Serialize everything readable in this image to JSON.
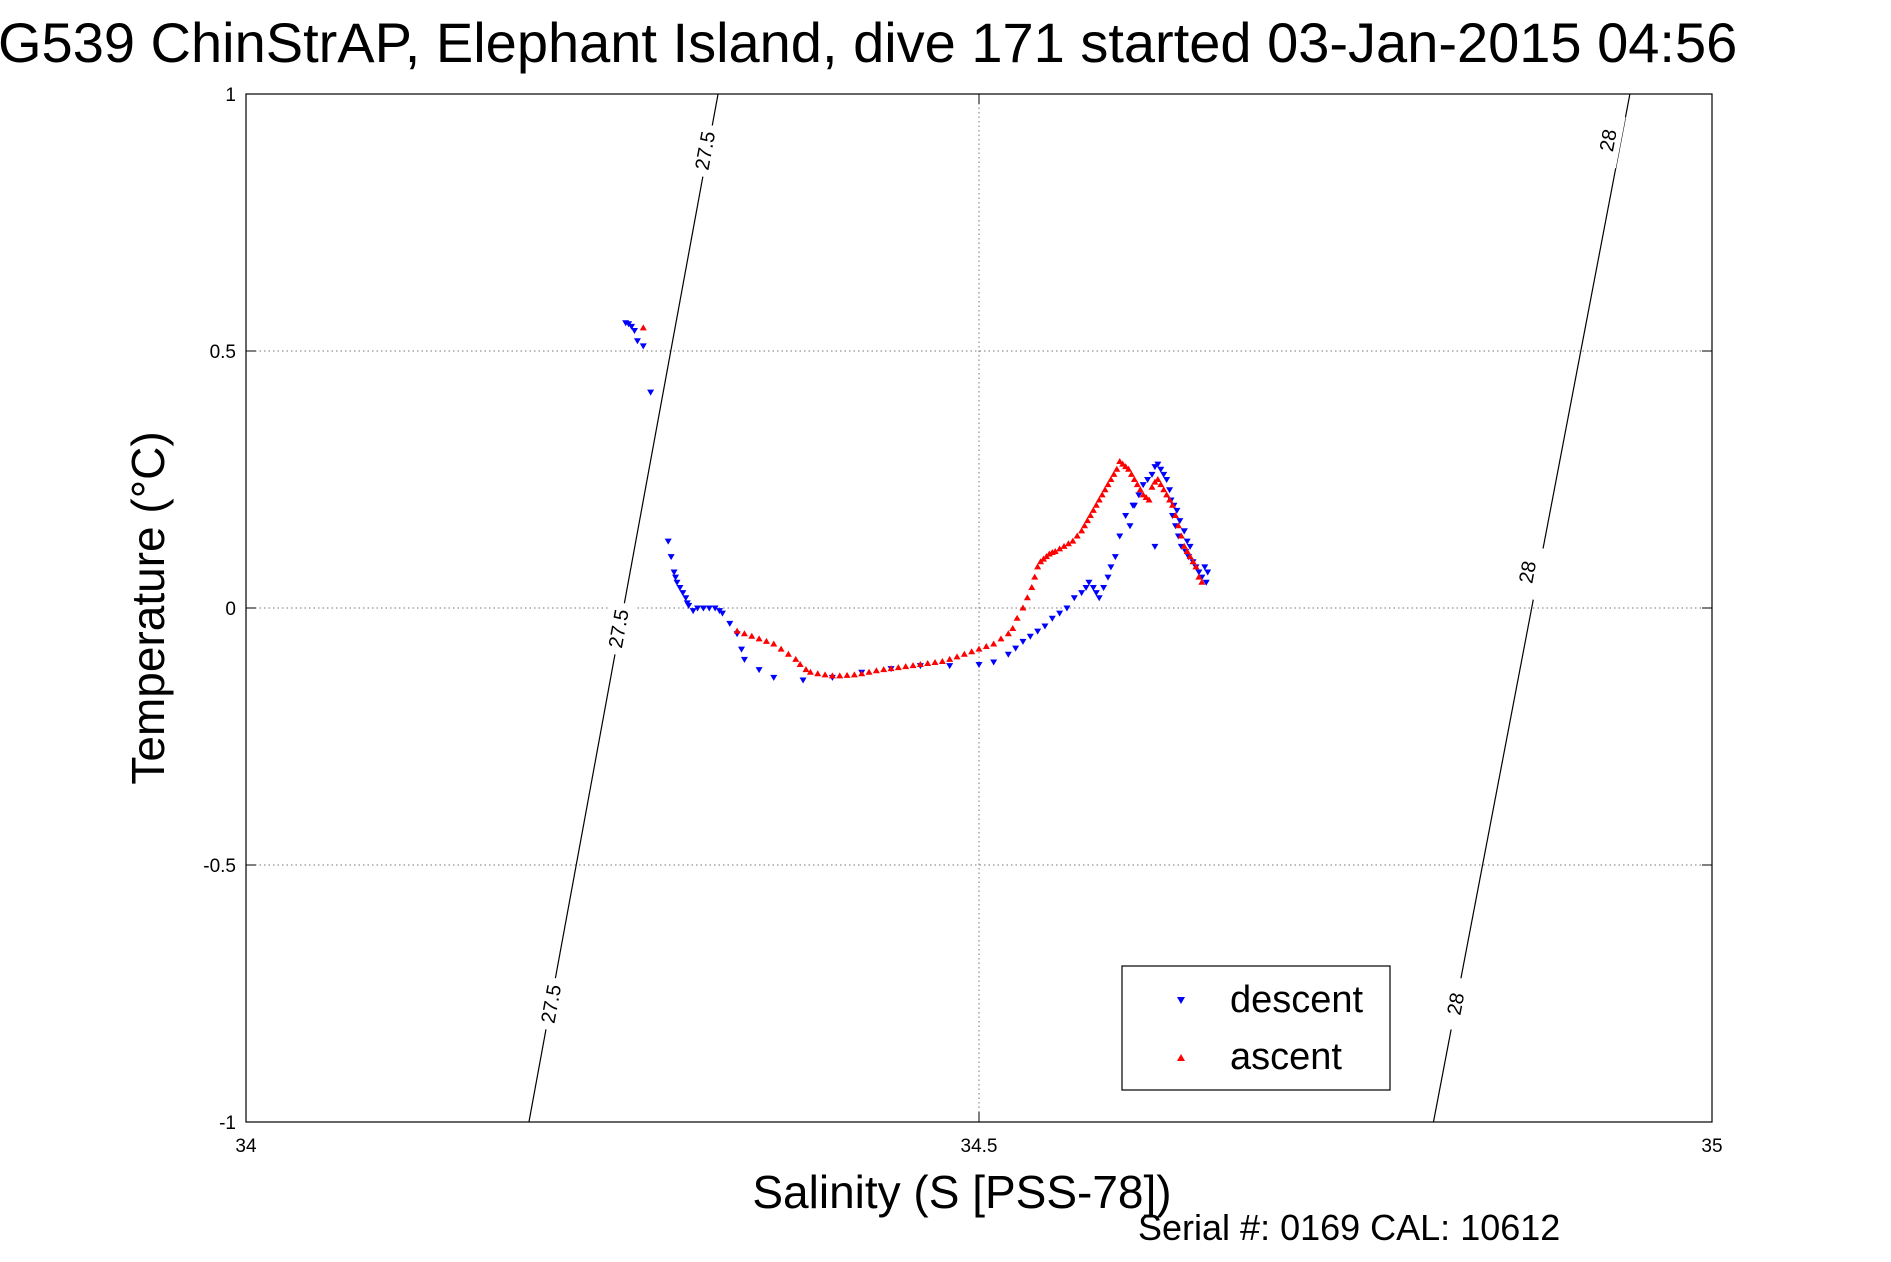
{
  "chart_data": {
    "type": "scatter",
    "title": "G539 ChinStrAP, Elephant Island, dive 171 started 03-Jan-2015 04:56",
    "xlabel": "Salinity (S [PSS-78])",
    "ylabel": "Temperature (°C)",
    "xlim": [
      34,
      35
    ],
    "ylim": [
      -1,
      1
    ],
    "xticks": [
      34,
      34.5,
      35
    ],
    "xtick_labels": [
      "34",
      "34.5",
      "35"
    ],
    "yticks": [
      -1,
      -0.5,
      0,
      0.5,
      1
    ],
    "ytick_labels": [
      "-1",
      "-0.5",
      "0",
      "0.5",
      "1"
    ],
    "grid": true,
    "legend_position": "bottom-right",
    "footer": "Serial #: 0169 CAL: 10612",
    "isopycnals": [
      {
        "label": "27.5",
        "points": [
          [
            34.193,
            -1.0
          ],
          [
            34.322,
            1.0
          ]
        ],
        "label_positions": [
          [
            34.208,
            -0.77
          ],
          [
            34.254,
            -0.04
          ],
          [
            34.313,
            0.89
          ]
        ]
      },
      {
        "label": "28",
        "points": [
          [
            34.81,
            -1.0
          ],
          [
            34.944,
            1.0
          ]
        ],
        "label_positions": [
          [
            34.825,
            -0.77
          ],
          [
            34.874,
            0.07
          ],
          [
            34.929,
            0.91
          ]
        ]
      }
    ],
    "series": [
      {
        "name": "descent",
        "color": "#0000ff",
        "marker": "triangle-down",
        "x": [
          34.259,
          34.261,
          34.263,
          34.265,
          34.267,
          34.271,
          34.276,
          34.288,
          34.29,
          34.292,
          34.293,
          34.294,
          34.296,
          34.298,
          34.3,
          34.301,
          34.302,
          34.305,
          34.308,
          34.312,
          34.316,
          34.32,
          34.323,
          34.325,
          34.33,
          34.335,
          34.338,
          34.34,
          34.35,
          34.36,
          34.38,
          34.4,
          34.42,
          34.44,
          34.46,
          34.48,
          34.5,
          34.51,
          34.52,
          34.525,
          34.53,
          34.535,
          34.54,
          34.545,
          34.55,
          34.555,
          34.56,
          34.565,
          34.57,
          34.573,
          34.575,
          34.578,
          34.58,
          34.582,
          34.585,
          34.588,
          34.59,
          34.593,
          34.596,
          34.6,
          34.603,
          34.606,
          34.609,
          34.612,
          34.615,
          34.618,
          34.62,
          34.622,
          34.624,
          34.626,
          34.628,
          34.63,
          34.631,
          34.632,
          34.633,
          34.634,
          34.635,
          34.636,
          34.637,
          34.638,
          34.64,
          34.641,
          34.642,
          34.643,
          34.644,
          34.646,
          34.648,
          34.65,
          34.652,
          34.654,
          34.655,
          34.656,
          34.64,
          34.62,
          34.605
        ],
        "y": [
          0.555,
          0.553,
          0.548,
          0.54,
          0.52,
          0.51,
          0.42,
          0.13,
          0.1,
          0.07,
          0.06,
          0.05,
          0.04,
          0.03,
          0.02,
          0.01,
          0.005,
          -0.005,
          0.0,
          0.0,
          0.0,
          0.0,
          -0.005,
          -0.01,
          -0.03,
          -0.05,
          -0.08,
          -0.1,
          -0.12,
          -0.135,
          -0.14,
          -0.135,
          -0.125,
          -0.118,
          -0.112,
          -0.112,
          -0.11,
          -0.105,
          -0.09,
          -0.078,
          -0.065,
          -0.055,
          -0.045,
          -0.035,
          -0.02,
          -0.01,
          0.0,
          0.02,
          0.03,
          0.04,
          0.05,
          0.04,
          0.03,
          0.02,
          0.04,
          0.06,
          0.08,
          0.1,
          0.14,
          0.18,
          0.16,
          0.2,
          0.22,
          0.24,
          0.25,
          0.26,
          0.275,
          0.28,
          0.27,
          0.26,
          0.25,
          0.23,
          0.21,
          0.18,
          0.2,
          0.16,
          0.19,
          0.14,
          0.17,
          0.12,
          0.15,
          0.11,
          0.13,
          0.1,
          0.12,
          0.09,
          0.08,
          0.07,
          0.06,
          0.08,
          0.05,
          0.07,
          0.15,
          0.12,
          0.2
        ]
      },
      {
        "name": "ascent",
        "color": "#ff0000",
        "marker": "triangle-up",
        "x": [
          34.271,
          34.335,
          34.34,
          34.345,
          34.35,
          34.355,
          34.36,
          34.365,
          34.37,
          34.375,
          34.378,
          34.382,
          34.385,
          34.39,
          34.395,
          34.4,
          34.405,
          34.41,
          34.415,
          34.42,
          34.425,
          34.43,
          34.435,
          34.44,
          34.445,
          34.45,
          34.455,
          34.46,
          34.465,
          34.47,
          34.475,
          34.48,
          34.485,
          34.49,
          34.495,
          34.5,
          34.505,
          34.51,
          34.515,
          34.52,
          34.523,
          34.526,
          34.53,
          34.533,
          34.536,
          34.538,
          34.54,
          34.542,
          34.544,
          34.546,
          34.548,
          34.55,
          34.552,
          34.555,
          34.558,
          34.561,
          34.564,
          34.567,
          34.57,
          34.572,
          34.574,
          34.576,
          34.578,
          34.58,
          34.582,
          34.584,
          34.586,
          34.588,
          34.59,
          34.592,
          34.594,
          34.596,
          34.598,
          34.6,
          34.602,
          34.604,
          34.606,
          34.608,
          34.61,
          34.612,
          34.614,
          34.616,
          34.618,
          34.62,
          34.622,
          34.624,
          34.626,
          34.628,
          34.63,
          34.632,
          34.634,
          34.636,
          34.638,
          34.64,
          34.642,
          34.644,
          34.646,
          34.648,
          34.65,
          34.652
        ],
        "y": [
          0.545,
          -0.045,
          -0.05,
          -0.055,
          -0.06,
          -0.065,
          -0.07,
          -0.08,
          -0.09,
          -0.1,
          -0.11,
          -0.12,
          -0.125,
          -0.128,
          -0.13,
          -0.132,
          -0.132,
          -0.131,
          -0.13,
          -0.128,
          -0.125,
          -0.122,
          -0.12,
          -0.118,
          -0.116,
          -0.114,
          -0.112,
          -0.11,
          -0.108,
          -0.106,
          -0.104,
          -0.1,
          -0.095,
          -0.09,
          -0.085,
          -0.08,
          -0.075,
          -0.07,
          -0.06,
          -0.05,
          -0.04,
          -0.02,
          0.0,
          0.02,
          0.04,
          0.06,
          0.08,
          0.09,
          0.095,
          0.1,
          0.105,
          0.108,
          0.11,
          0.115,
          0.12,
          0.125,
          0.13,
          0.14,
          0.15,
          0.16,
          0.17,
          0.18,
          0.19,
          0.2,
          0.21,
          0.22,
          0.23,
          0.24,
          0.25,
          0.26,
          0.27,
          0.285,
          0.28,
          0.275,
          0.27,
          0.26,
          0.25,
          0.24,
          0.23,
          0.22,
          0.215,
          0.21,
          0.235,
          0.245,
          0.25,
          0.24,
          0.23,
          0.22,
          0.21,
          0.2,
          0.18,
          0.16,
          0.14,
          0.12,
          0.11,
          0.1,
          0.09,
          0.08,
          0.06,
          0.05
        ]
      }
    ]
  }
}
